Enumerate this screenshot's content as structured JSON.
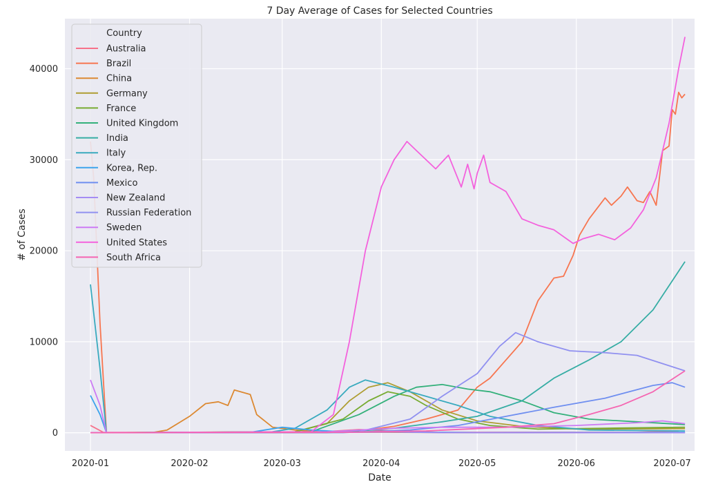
{
  "chart_data": {
    "type": "line",
    "title": "7 Day Average of Cases for Selected Countries",
    "xlabel": "Date",
    "ylabel": "# of Cases",
    "x_ticks": [
      "2020-01",
      "2020-02",
      "2020-03",
      "2020-04",
      "2020-05",
      "2020-06",
      "2020-07"
    ],
    "y_ticks": [
      0,
      10000,
      20000,
      30000,
      40000
    ],
    "xlim": [
      "2019-12-24",
      "2020-07-08"
    ],
    "ylim": [
      -2000,
      45500
    ],
    "grid": true,
    "background": "#eaeaf2",
    "legend": {
      "title": "Country",
      "placement": "top-left"
    },
    "series": [
      {
        "name": "Australia",
        "color": "#f77189",
        "points": [
          [
            "2020-01-01",
            800
          ],
          [
            "2020-01-05",
            50
          ],
          [
            "2020-03-10",
            20
          ],
          [
            "2020-03-25",
            350
          ],
          [
            "2020-04-05",
            200
          ],
          [
            "2020-04-20",
            50
          ],
          [
            "2020-06-20",
            60
          ],
          [
            "2020-07-03",
            200
          ]
        ]
      },
      {
        "name": "Brazil",
        "color": "#f7754f",
        "points": [
          [
            "2020-01-01",
            32000
          ],
          [
            "2020-01-02",
            28000
          ],
          [
            "2020-01-04",
            12000
          ],
          [
            "2020-01-06",
            0
          ],
          [
            "2020-03-15",
            0
          ],
          [
            "2020-03-25",
            200
          ],
          [
            "2020-04-05",
            700
          ],
          [
            "2020-04-15",
            1500
          ],
          [
            "2020-04-25",
            2500
          ],
          [
            "2020-05-01",
            5000
          ],
          [
            "2020-05-05",
            6000
          ],
          [
            "2020-05-10",
            8000
          ],
          [
            "2020-05-15",
            10000
          ],
          [
            "2020-05-20",
            14500
          ],
          [
            "2020-05-25",
            17000
          ],
          [
            "2020-05-28",
            17200
          ],
          [
            "2020-05-31",
            19500
          ],
          [
            "2020-06-02",
            21700
          ],
          [
            "2020-06-05",
            23500
          ],
          [
            "2020-06-10",
            25800
          ],
          [
            "2020-06-12",
            25000
          ],
          [
            "2020-06-15",
            26000
          ],
          [
            "2020-06-17",
            27000
          ],
          [
            "2020-06-20",
            25500
          ],
          [
            "2020-06-22",
            25300
          ],
          [
            "2020-06-24",
            26500
          ],
          [
            "2020-06-26",
            25000
          ],
          [
            "2020-06-28",
            31000
          ],
          [
            "2020-06-30",
            31500
          ],
          [
            "2020-07-01",
            35500
          ],
          [
            "2020-07-02",
            35000
          ],
          [
            "2020-07-03",
            37400
          ],
          [
            "2020-07-04",
            36800
          ],
          [
            "2020-07-05",
            37200
          ]
        ]
      },
      {
        "name": "China",
        "color": "#dc8932",
        "points": [
          [
            "2020-01-01",
            0
          ],
          [
            "2020-01-20",
            0
          ],
          [
            "2020-01-25",
            300
          ],
          [
            "2020-02-01",
            1800
          ],
          [
            "2020-02-06",
            3200
          ],
          [
            "2020-02-10",
            3400
          ],
          [
            "2020-02-13",
            3000
          ],
          [
            "2020-02-15",
            4700
          ],
          [
            "2020-02-20",
            4200
          ],
          [
            "2020-02-22",
            2000
          ],
          [
            "2020-02-27",
            600
          ],
          [
            "2020-03-05",
            300
          ],
          [
            "2020-03-15",
            50
          ],
          [
            "2020-04-01",
            50
          ],
          [
            "2020-05-01",
            10
          ],
          [
            "2020-07-05",
            15
          ]
        ]
      },
      {
        "name": "Germany",
        "color": "#ae9d31",
        "points": [
          [
            "2020-01-01",
            0
          ],
          [
            "2020-03-05",
            100
          ],
          [
            "2020-03-15",
            1000
          ],
          [
            "2020-03-22",
            3500
          ],
          [
            "2020-03-28",
            5000
          ],
          [
            "2020-04-03",
            5500
          ],
          [
            "2020-04-10",
            4500
          ],
          [
            "2020-04-20",
            2500
          ],
          [
            "2020-05-01",
            1300
          ],
          [
            "2020-05-15",
            700
          ],
          [
            "2020-06-01",
            400
          ],
          [
            "2020-07-05",
            450
          ]
        ]
      },
      {
        "name": "France",
        "color": "#77ab31",
        "points": [
          [
            "2020-01-01",
            0
          ],
          [
            "2020-03-05",
            100
          ],
          [
            "2020-03-20",
            1500
          ],
          [
            "2020-03-28",
            3500
          ],
          [
            "2020-04-03",
            4500
          ],
          [
            "2020-04-10",
            4000
          ],
          [
            "2020-04-15",
            3000
          ],
          [
            "2020-04-25",
            1500
          ],
          [
            "2020-05-05",
            800
          ],
          [
            "2020-05-20",
            400
          ],
          [
            "2020-06-10",
            500
          ],
          [
            "2020-07-05",
            600
          ]
        ]
      },
      {
        "name": "United Kingdom",
        "color": "#33b07a",
        "points": [
          [
            "2020-01-01",
            0
          ],
          [
            "2020-03-10",
            100
          ],
          [
            "2020-03-25",
            2000
          ],
          [
            "2020-04-05",
            4000
          ],
          [
            "2020-04-12",
            5000
          ],
          [
            "2020-04-20",
            5300
          ],
          [
            "2020-04-28",
            4800
          ],
          [
            "2020-05-05",
            4500
          ],
          [
            "2020-05-15",
            3500
          ],
          [
            "2020-05-25",
            2200
          ],
          [
            "2020-06-05",
            1500
          ],
          [
            "2020-06-20",
            1200
          ],
          [
            "2020-07-05",
            900
          ]
        ]
      },
      {
        "name": "India",
        "color": "#36ada4",
        "points": [
          [
            "2020-01-01",
            0
          ],
          [
            "2020-03-20",
            50
          ],
          [
            "2020-04-05",
            500
          ],
          [
            "2020-04-20",
            1200
          ],
          [
            "2020-05-01",
            1800
          ],
          [
            "2020-05-15",
            3500
          ],
          [
            "2020-05-25",
            6000
          ],
          [
            "2020-06-05",
            8000
          ],
          [
            "2020-06-15",
            10000
          ],
          [
            "2020-06-25",
            13500
          ],
          [
            "2020-07-05",
            18800
          ]
        ]
      },
      {
        "name": "Italy",
        "color": "#38aabe",
        "points": [
          [
            "2020-01-01",
            16300
          ],
          [
            "2020-01-04",
            7000
          ],
          [
            "2020-01-06",
            0
          ],
          [
            "2020-02-25",
            0
          ],
          [
            "2020-03-05",
            500
          ],
          [
            "2020-03-15",
            2500
          ],
          [
            "2020-03-22",
            5000
          ],
          [
            "2020-03-27",
            5800
          ],
          [
            "2020-04-05",
            5000
          ],
          [
            "2020-04-15",
            4000
          ],
          [
            "2020-04-25",
            3000
          ],
          [
            "2020-05-05",
            1800
          ],
          [
            "2020-05-20",
            800
          ],
          [
            "2020-06-05",
            300
          ],
          [
            "2020-07-05",
            200
          ]
        ]
      },
      {
        "name": "Korea, Rep.",
        "color": "#3ba3ec",
        "points": [
          [
            "2020-01-01",
            4100
          ],
          [
            "2020-01-04",
            2000
          ],
          [
            "2020-01-06",
            0
          ],
          [
            "2020-02-20",
            50
          ],
          [
            "2020-03-01",
            600
          ],
          [
            "2020-03-10",
            300
          ],
          [
            "2020-03-20",
            100
          ],
          [
            "2020-04-01",
            100
          ],
          [
            "2020-05-01",
            20
          ],
          [
            "2020-07-05",
            50
          ]
        ]
      },
      {
        "name": "Mexico",
        "color": "#6e8ef0",
        "points": [
          [
            "2020-01-01",
            0
          ],
          [
            "2020-03-20",
            10
          ],
          [
            "2020-04-10",
            300
          ],
          [
            "2020-04-25",
            800
          ],
          [
            "2020-05-10",
            1800
          ],
          [
            "2020-05-25",
            2800
          ],
          [
            "2020-06-10",
            3800
          ],
          [
            "2020-06-25",
            5200
          ],
          [
            "2020-07-01",
            5500
          ],
          [
            "2020-07-05",
            5000
          ]
        ]
      },
      {
        "name": "New Zealand",
        "color": "#a48cf4",
        "points": [
          [
            "2020-01-01",
            0
          ],
          [
            "2020-03-25",
            50
          ],
          [
            "2020-04-05",
            80
          ],
          [
            "2020-04-20",
            10
          ],
          [
            "2020-07-05",
            0
          ]
        ]
      },
      {
        "name": "Russian Federation",
        "color": "#9090f0",
        "points": [
          [
            "2020-01-01",
            0
          ],
          [
            "2020-03-25",
            100
          ],
          [
            "2020-04-10",
            1500
          ],
          [
            "2020-04-20",
            4000
          ],
          [
            "2020-05-01",
            6500
          ],
          [
            "2020-05-08",
            9500
          ],
          [
            "2020-05-13",
            11000
          ],
          [
            "2020-05-20",
            10000
          ],
          [
            "2020-05-30",
            9000
          ],
          [
            "2020-06-10",
            8800
          ],
          [
            "2020-06-20",
            8500
          ],
          [
            "2020-07-05",
            6800
          ]
        ]
      },
      {
        "name": "Sweden",
        "color": "#cc7af4",
        "points": [
          [
            "2020-01-01",
            5800
          ],
          [
            "2020-01-04",
            3000
          ],
          [
            "2020-01-06",
            0
          ],
          [
            "2020-03-15",
            100
          ],
          [
            "2020-04-05",
            500
          ],
          [
            "2020-04-20",
            600
          ],
          [
            "2020-05-10",
            600
          ],
          [
            "2020-06-01",
            800
          ],
          [
            "2020-06-20",
            1100
          ],
          [
            "2020-06-28",
            1300
          ],
          [
            "2020-07-05",
            1000
          ]
        ]
      },
      {
        "name": "United States",
        "color": "#f461dd",
        "points": [
          [
            "2020-01-01",
            0
          ],
          [
            "2020-03-10",
            100
          ],
          [
            "2020-03-17",
            2000
          ],
          [
            "2020-03-22",
            10000
          ],
          [
            "2020-03-27",
            20000
          ],
          [
            "2020-04-01",
            27000
          ],
          [
            "2020-04-05",
            30000
          ],
          [
            "2020-04-09",
            32000
          ],
          [
            "2020-04-12",
            31000
          ],
          [
            "2020-04-18",
            29000
          ],
          [
            "2020-04-22",
            30500
          ],
          [
            "2020-04-26",
            27000
          ],
          [
            "2020-04-28",
            29500
          ],
          [
            "2020-04-30",
            26800
          ],
          [
            "2020-05-01",
            28500
          ],
          [
            "2020-05-03",
            30500
          ],
          [
            "2020-05-05",
            27500
          ],
          [
            "2020-05-10",
            26500
          ],
          [
            "2020-05-15",
            23500
          ],
          [
            "2020-05-20",
            22800
          ],
          [
            "2020-05-25",
            22300
          ],
          [
            "2020-05-31",
            20800
          ],
          [
            "2020-06-03",
            21300
          ],
          [
            "2020-06-08",
            21800
          ],
          [
            "2020-06-13",
            21200
          ],
          [
            "2020-06-18",
            22500
          ],
          [
            "2020-06-22",
            24500
          ],
          [
            "2020-06-26",
            28000
          ],
          [
            "2020-06-30",
            34000
          ],
          [
            "2020-07-03",
            40000
          ],
          [
            "2020-07-05",
            43500
          ]
        ]
      },
      {
        "name": "South Africa",
        "color": "#f565b1",
        "points": [
          [
            "2020-01-01",
            0
          ],
          [
            "2020-03-20",
            50
          ],
          [
            "2020-04-15",
            200
          ],
          [
            "2020-05-10",
            600
          ],
          [
            "2020-05-25",
            1000
          ],
          [
            "2020-06-05",
            2000
          ],
          [
            "2020-06-15",
            3000
          ],
          [
            "2020-06-25",
            4500
          ],
          [
            "2020-07-05",
            6800
          ]
        ]
      }
    ]
  }
}
